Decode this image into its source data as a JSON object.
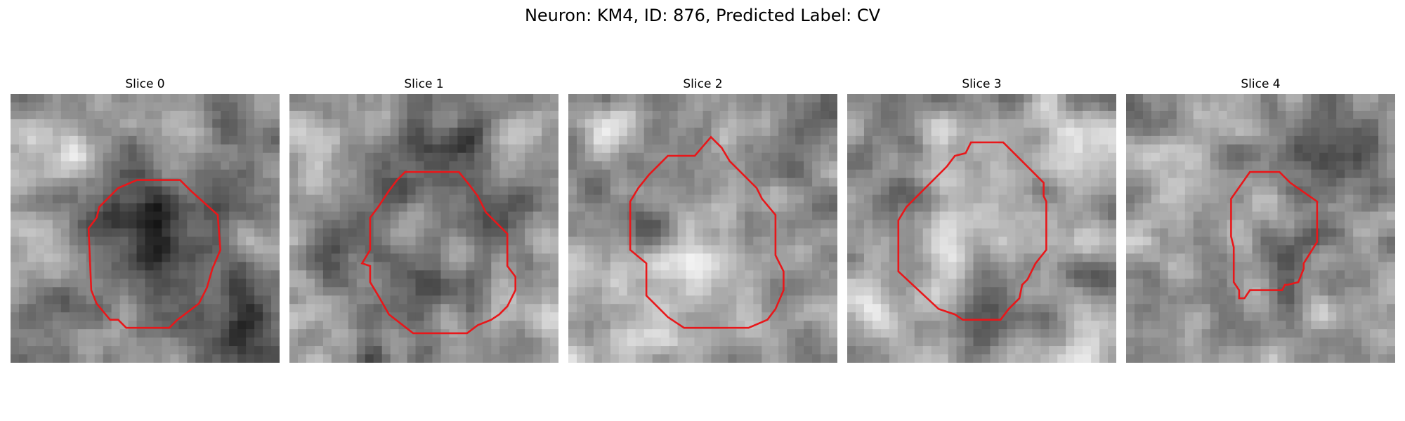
{
  "figure": {
    "title": "Neuron: KM4, ID: 876, Predicted Label: CV"
  },
  "colors": {
    "contour": "#e8171a",
    "background": "#ffffff"
  },
  "slices": [
    {
      "label": "Slice 0",
      "seed": 11,
      "blobs": [
        [
          0.52,
          0.48,
          0.2,
          -0.95
        ],
        [
          0.22,
          0.2,
          0.12,
          0.45
        ],
        [
          0.85,
          0.86,
          0.12,
          -0.85
        ],
        [
          0.6,
          0.12,
          0.1,
          0.35
        ],
        [
          0.05,
          0.7,
          0.08,
          -0.25
        ],
        [
          0.15,
          0.6,
          0.08,
          0.35
        ]
      ],
      "contour": [
        [
          0.4,
          0.35
        ],
        [
          0.47,
          0.32
        ],
        [
          0.63,
          0.32
        ],
        [
          0.67,
          0.36
        ],
        [
          0.77,
          0.45
        ],
        [
          0.78,
          0.58
        ],
        [
          0.75,
          0.65
        ],
        [
          0.73,
          0.72
        ],
        [
          0.7,
          0.78
        ],
        [
          0.62,
          0.84
        ],
        [
          0.59,
          0.87
        ],
        [
          0.43,
          0.87
        ],
        [
          0.4,
          0.84
        ],
        [
          0.37,
          0.84
        ],
        [
          0.32,
          0.78
        ],
        [
          0.3,
          0.73
        ],
        [
          0.29,
          0.5
        ],
        [
          0.32,
          0.46
        ],
        [
          0.33,
          0.42
        ],
        [
          0.37,
          0.38
        ]
      ]
    },
    {
      "label": "Slice 1",
      "seed": 23,
      "blobs": [
        [
          0.47,
          0.52,
          0.24,
          -0.55
        ],
        [
          0.42,
          0.48,
          0.08,
          0.4
        ],
        [
          0.6,
          0.58,
          0.08,
          0.35
        ],
        [
          0.12,
          0.25,
          0.12,
          0.45
        ],
        [
          0.88,
          0.15,
          0.1,
          0.4
        ],
        [
          0.85,
          0.75,
          0.1,
          0.35
        ],
        [
          0.68,
          0.18,
          0.1,
          -0.45
        ],
        [
          0.1,
          0.6,
          0.08,
          -0.35
        ]
      ],
      "contour": [
        [
          0.4,
          0.32
        ],
        [
          0.43,
          0.29
        ],
        [
          0.63,
          0.29
        ],
        [
          0.67,
          0.34
        ],
        [
          0.7,
          0.38
        ],
        [
          0.73,
          0.44
        ],
        [
          0.81,
          0.52
        ],
        [
          0.81,
          0.64
        ],
        [
          0.84,
          0.68
        ],
        [
          0.84,
          0.73
        ],
        [
          0.81,
          0.79
        ],
        [
          0.78,
          0.82
        ],
        [
          0.75,
          0.84
        ],
        [
          0.7,
          0.86
        ],
        [
          0.66,
          0.89
        ],
        [
          0.46,
          0.89
        ],
        [
          0.37,
          0.82
        ],
        [
          0.33,
          0.75
        ],
        [
          0.3,
          0.7
        ],
        [
          0.3,
          0.64
        ],
        [
          0.27,
          0.63
        ],
        [
          0.3,
          0.58
        ],
        [
          0.3,
          0.46
        ],
        [
          0.33,
          0.42
        ],
        [
          0.37,
          0.36
        ]
      ]
    },
    {
      "label": "Slice 2",
      "seed": 37,
      "blobs": [
        [
          0.5,
          0.6,
          0.2,
          0.45
        ],
        [
          0.2,
          0.45,
          0.1,
          -0.55
        ],
        [
          0.8,
          0.3,
          0.1,
          -0.45
        ],
        [
          0.5,
          0.28,
          0.08,
          -0.35
        ],
        [
          0.3,
          0.88,
          0.1,
          0.35
        ],
        [
          0.1,
          0.15,
          0.08,
          0.3
        ],
        [
          0.85,
          0.8,
          0.1,
          -0.25
        ]
      ],
      "contour": [
        [
          0.37,
          0.23
        ],
        [
          0.47,
          0.23
        ],
        [
          0.53,
          0.16
        ],
        [
          0.57,
          0.2
        ],
        [
          0.6,
          0.25
        ],
        [
          0.63,
          0.28
        ],
        [
          0.7,
          0.35
        ],
        [
          0.72,
          0.39
        ],
        [
          0.77,
          0.45
        ],
        [
          0.77,
          0.6
        ],
        [
          0.8,
          0.66
        ],
        [
          0.8,
          0.73
        ],
        [
          0.77,
          0.8
        ],
        [
          0.74,
          0.84
        ],
        [
          0.67,
          0.87
        ],
        [
          0.43,
          0.87
        ],
        [
          0.37,
          0.83
        ],
        [
          0.29,
          0.75
        ],
        [
          0.29,
          0.63
        ],
        [
          0.23,
          0.58
        ],
        [
          0.23,
          0.4
        ],
        [
          0.26,
          0.35
        ],
        [
          0.3,
          0.3
        ]
      ]
    },
    {
      "label": "Slice 3",
      "seed": 49,
      "blobs": [
        [
          0.46,
          0.45,
          0.22,
          0.4
        ],
        [
          0.18,
          0.4,
          0.1,
          -0.55
        ],
        [
          0.72,
          0.38,
          0.1,
          -0.45
        ],
        [
          0.5,
          0.78,
          0.1,
          -0.55
        ],
        [
          0.85,
          0.15,
          0.1,
          0.35
        ],
        [
          0.1,
          0.85,
          0.1,
          0.3
        ],
        [
          0.9,
          0.9,
          0.08,
          0.3
        ]
      ],
      "contour": [
        [
          0.44,
          0.22
        ],
        [
          0.46,
          0.18
        ],
        [
          0.58,
          0.18
        ],
        [
          0.62,
          0.22
        ],
        [
          0.68,
          0.28
        ],
        [
          0.73,
          0.33
        ],
        [
          0.73,
          0.38
        ],
        [
          0.74,
          0.4
        ],
        [
          0.74,
          0.58
        ],
        [
          0.7,
          0.63
        ],
        [
          0.67,
          0.69
        ],
        [
          0.65,
          0.71
        ],
        [
          0.64,
          0.76
        ],
        [
          0.6,
          0.8
        ],
        [
          0.57,
          0.84
        ],
        [
          0.53,
          0.84
        ],
        [
          0.43,
          0.84
        ],
        [
          0.4,
          0.82
        ],
        [
          0.34,
          0.8
        ],
        [
          0.19,
          0.66
        ],
        [
          0.19,
          0.47
        ],
        [
          0.22,
          0.42
        ],
        [
          0.24,
          0.4
        ],
        [
          0.37,
          0.27
        ],
        [
          0.4,
          0.23
        ]
      ]
    },
    {
      "label": "Slice 4",
      "seed": 61,
      "blobs": [
        [
          0.49,
          0.5,
          0.12,
          0.3
        ],
        [
          0.8,
          0.2,
          0.14,
          -0.7
        ],
        [
          0.65,
          0.6,
          0.1,
          -0.5
        ],
        [
          0.2,
          0.2,
          0.1,
          0.3
        ],
        [
          0.3,
          0.75,
          0.1,
          -0.35
        ],
        [
          0.85,
          0.85,
          0.12,
          0.35
        ],
        [
          0.1,
          0.55,
          0.08,
          0.3
        ],
        [
          0.1,
          0.1,
          0.08,
          -0.45
        ]
      ],
      "contour": [
        [
          0.39,
          0.39
        ],
        [
          0.46,
          0.29
        ],
        [
          0.57,
          0.29
        ],
        [
          0.61,
          0.33
        ],
        [
          0.71,
          0.4
        ],
        [
          0.71,
          0.55
        ],
        [
          0.66,
          0.63
        ],
        [
          0.66,
          0.65
        ],
        [
          0.64,
          0.7
        ],
        [
          0.6,
          0.71
        ],
        [
          0.59,
          0.71
        ],
        [
          0.58,
          0.73
        ],
        [
          0.46,
          0.73
        ],
        [
          0.44,
          0.76
        ],
        [
          0.42,
          0.76
        ],
        [
          0.42,
          0.73
        ],
        [
          0.4,
          0.7
        ],
        [
          0.4,
          0.57
        ],
        [
          0.39,
          0.53
        ],
        [
          0.39,
          0.52
        ],
        [
          0.39,
          0.45
        ]
      ]
    }
  ]
}
